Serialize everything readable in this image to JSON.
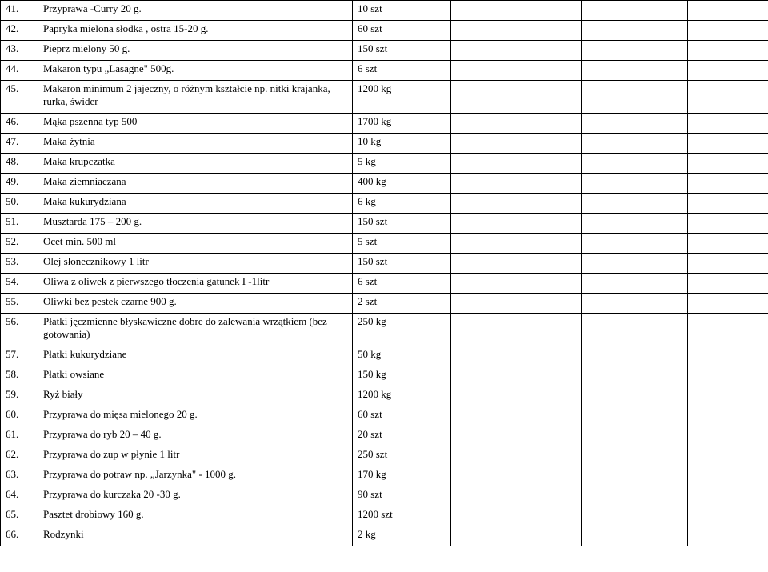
{
  "rows": [
    {
      "num": "41.",
      "name": "Przyprawa -Curry  20 g.",
      "qty": "10 szt",
      "tall": false
    },
    {
      "num": "42.",
      "name": "Papryka mielona słodka , ostra 15-20 g.",
      "qty": "60 szt",
      "tall": false
    },
    {
      "num": "43.",
      "name": "Pieprz mielony 50 g.",
      "qty": "150 szt",
      "tall": false
    },
    {
      "num": "44.",
      "name": "Makaron typu „Lasagne\" 500g.",
      "qty": "6 szt",
      "tall": false
    },
    {
      "num": "45.",
      "name": "Makaron minimum 2 jajeczny, o różnym kształcie np. nitki krajanka, rurka, świder",
      "qty": "1200 kg",
      "tall": true
    },
    {
      "num": "46.",
      "name": "Mąka pszenna typ 500",
      "qty": "1700 kg",
      "tall": false
    },
    {
      "num": "47.",
      "name": "Maka żytnia",
      "qty": "10 kg",
      "tall": false
    },
    {
      "num": "48.",
      "name": "Maka krupczatka",
      "qty": "5 kg",
      "tall": false
    },
    {
      "num": "49.",
      "name": "Maka ziemniaczana",
      "qty": "400 kg",
      "tall": false
    },
    {
      "num": "50.",
      "name": "Maka kukurydziana",
      "qty": "6 kg",
      "tall": false
    },
    {
      "num": "51.",
      "name": "Musztarda 175 – 200 g.",
      "qty": "150 szt",
      "tall": false
    },
    {
      "num": "52.",
      "name": "Ocet min. 500 ml",
      "qty": "5 szt",
      "tall": false
    },
    {
      "num": "53.",
      "name": "Olej słonecznikowy 1 litr",
      "qty": "150 szt",
      "tall": false
    },
    {
      "num": "54.",
      "name": "Oliwa z oliwek z pierwszego tłoczenia gatunek I -1litr",
      "qty": "6 szt",
      "tall": false
    },
    {
      "num": "55.",
      "name": "Oliwki bez pestek czarne 900 g.",
      "qty": "2 szt",
      "tall": false
    },
    {
      "num": "56.",
      "name": "Płatki jęczmienne błyskawiczne dobre do zalewania wrzątkiem (bez gotowania)",
      "qty": "250 kg",
      "tall": true
    },
    {
      "num": "57.",
      "name": "Płatki kukurydziane",
      "qty": "50 kg",
      "tall": false
    },
    {
      "num": "58.",
      "name": "Płatki owsiane",
      "qty": "150 kg",
      "tall": false
    },
    {
      "num": "59.",
      "name": "Ryż biały",
      "qty": "1200 kg",
      "tall": false
    },
    {
      "num": "60.",
      "name": "Przyprawa do mięsa mielonego 20 g.",
      "qty": "60 szt",
      "tall": false
    },
    {
      "num": "61.",
      "name": "Przyprawa do ryb 20 – 40 g.",
      "qty": "20 szt",
      "tall": false
    },
    {
      "num": "62.",
      "name": "Przyprawa do zup w płynie  1 litr",
      "qty": "250 szt",
      "tall": false
    },
    {
      "num": "63.",
      "name": "Przyprawa do potraw np. „Jarzynka\" - 1000 g.",
      "qty": "170 kg",
      "tall": false
    },
    {
      "num": "64.",
      "name": "Przyprawa do kurczaka 20 -30 g.",
      "qty": "90 szt",
      "tall": false
    },
    {
      "num": "65.",
      "name": "Pasztet drobiowy 160 g.",
      "qty": "1200 szt",
      "tall": false
    },
    {
      "num": "66.",
      "name": "Rodzynki",
      "qty": "2 kg",
      "tall": false
    }
  ],
  "gaps_after": [
    4,
    15
  ],
  "columns": {
    "num_width": 34,
    "name_width": 380,
    "qty_width": 110,
    "blank1_width": 150,
    "blank2_width": 120,
    "blank3_width": 160
  },
  "style": {
    "font_family": "Times New Roman",
    "font_size_pt": 10,
    "border_color": "#000000",
    "background_color": "#ffffff",
    "text_color": "#000000"
  }
}
